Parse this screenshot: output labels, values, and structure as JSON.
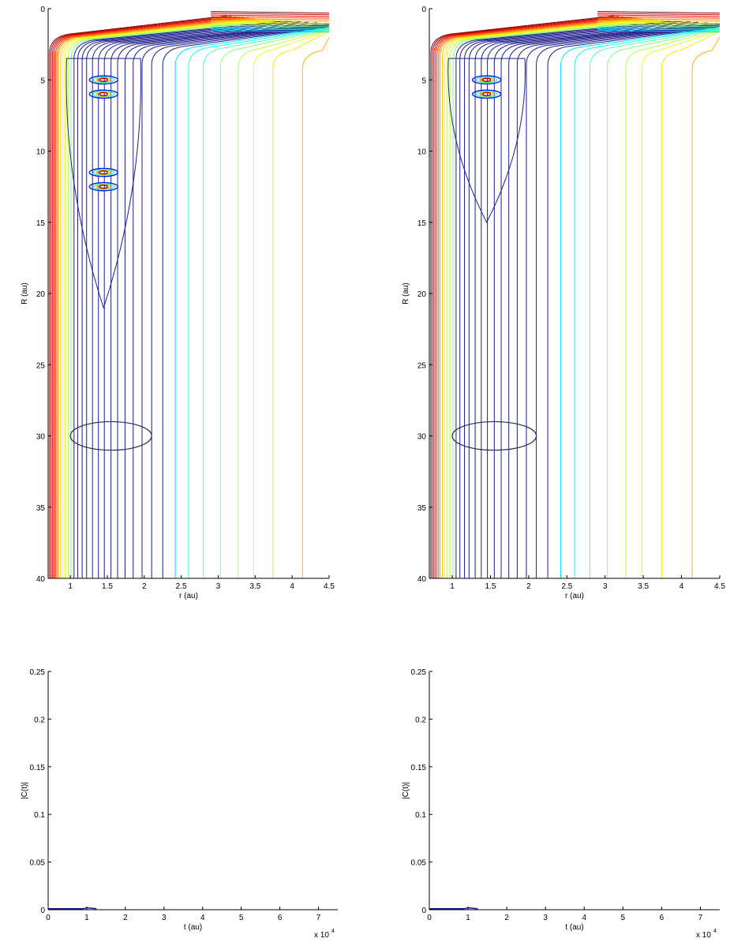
{
  "chart_data": [
    {
      "type": "contour",
      "xlabel": "r (au)",
      "ylabel": "R (au)",
      "xlim": [
        0.7,
        4.5
      ],
      "ylim": [
        0,
        40
      ],
      "y_reversed": true,
      "xticks": [
        1,
        1.5,
        2,
        2.5,
        3,
        3.5,
        4,
        4.5
      ],
      "xtick_labels": [
        "1",
        "1.5",
        "2",
        "2.5",
        "3",
        "3.5",
        "4",
        "4.5"
      ],
      "yticks": [
        0,
        5,
        10,
        15,
        20,
        25,
        30,
        35,
        40
      ],
      "ytick_labels": [
        "0",
        "5",
        "10",
        "15",
        "20",
        "25",
        "30",
        "35",
        "40"
      ],
      "potential_contour_r": [
        0.72,
        0.74,
        0.76,
        0.78,
        0.8,
        0.82,
        0.84,
        0.87,
        0.9,
        0.93,
        0.97,
        1.01,
        1.05,
        1.1,
        1.16,
        1.22,
        1.3,
        1.38,
        1.46,
        1.55,
        1.64,
        1.74,
        1.85,
        1.97,
        2.1,
        2.25,
        2.42,
        2.6,
        2.8,
        3.03,
        3.27,
        3.48,
        3.74,
        4.14
      ],
      "wavepacket_center": {
        "r": 1.45,
        "R_peaks": [
          5,
          6,
          11.5,
          12.5
        ]
      },
      "wavepacket_extent_R": 21,
      "ellipse": {
        "r": 1.55,
        "R": 30,
        "dr": 0.55,
        "dR": 1
      }
    },
    {
      "type": "contour",
      "xlabel": "r (au)",
      "ylabel": "R (au)",
      "xlim": [
        0.7,
        4.5
      ],
      "ylim": [
        0,
        40
      ],
      "y_reversed": true,
      "xticks": [
        1,
        1.5,
        2,
        2.5,
        3,
        3.5,
        4,
        4.5
      ],
      "xtick_labels": [
        "1",
        "1.5",
        "2",
        "2.5",
        "3",
        "3.5",
        "4",
        "4.5"
      ],
      "yticks": [
        0,
        5,
        10,
        15,
        20,
        25,
        30,
        35,
        40
      ],
      "ytick_labels": [
        "0",
        "5",
        "10",
        "15",
        "20",
        "25",
        "30",
        "35",
        "40"
      ],
      "potential_contour_r": [
        0.72,
        0.74,
        0.76,
        0.78,
        0.8,
        0.82,
        0.84,
        0.87,
        0.9,
        0.93,
        0.97,
        1.01,
        1.05,
        1.1,
        1.16,
        1.22,
        1.3,
        1.38,
        1.46,
        1.55,
        1.64,
        1.74,
        1.85,
        1.97,
        2.1,
        2.25,
        2.42,
        2.6,
        2.8,
        3.03,
        3.27,
        3.48,
        3.74,
        4.14
      ],
      "wavepacket_center": {
        "r": 1.45,
        "R_peaks": [
          5,
          6
        ]
      },
      "wavepacket_extent_R": 15,
      "ellipse": {
        "r": 1.55,
        "R": 30,
        "dr": 0.55,
        "dR": 1
      }
    },
    {
      "type": "line",
      "xlabel": "t (au)",
      "ylabel": "|C(t)|",
      "xlim": [
        0,
        75000
      ],
      "ylim": [
        0,
        0.25
      ],
      "xticks": [
        0,
        10000,
        20000,
        30000,
        40000,
        50000,
        60000,
        70000
      ],
      "xtick_labels": [
        "0",
        "1",
        "2",
        "3",
        "4",
        "5",
        "6",
        "7"
      ],
      "yticks": [
        0,
        0.05,
        0.1,
        0.15,
        0.2,
        0.25
      ],
      "ytick_labels": [
        "0",
        "0.05",
        "0.1",
        "0.15",
        "0.2",
        "0.25"
      ],
      "x_multiplier_base": "x 10",
      "x_multiplier_exp": "4",
      "series": [
        {
          "x": [
            0,
            3000,
            6000,
            9000,
            10000,
            12500
          ],
          "y": [
            0.001,
            0.001,
            0.001,
            0.001,
            0.002,
            0.001
          ]
        }
      ]
    },
    {
      "type": "line",
      "xlabel": "t (au)",
      "ylabel": "|C(t)|",
      "xlim": [
        0,
        75000
      ],
      "ylim": [
        0,
        0.25
      ],
      "xticks": [
        0,
        10000,
        20000,
        30000,
        40000,
        50000,
        60000,
        70000
      ],
      "xtick_labels": [
        "0",
        "1",
        "2",
        "3",
        "4",
        "5",
        "6",
        "7"
      ],
      "yticks": [
        0,
        0.05,
        0.1,
        0.15,
        0.2,
        0.25
      ],
      "ytick_labels": [
        "0",
        "0.05",
        "0.1",
        "0.15",
        "0.2",
        "0.25"
      ],
      "x_multiplier_base": "x 10",
      "x_multiplier_exp": "4",
      "series": [
        {
          "x": [
            0,
            3000,
            6000,
            9000,
            10000,
            12500
          ],
          "y": [
            0.001,
            0.001,
            0.001,
            0.001,
            0.002,
            0.001
          ]
        }
      ]
    }
  ]
}
